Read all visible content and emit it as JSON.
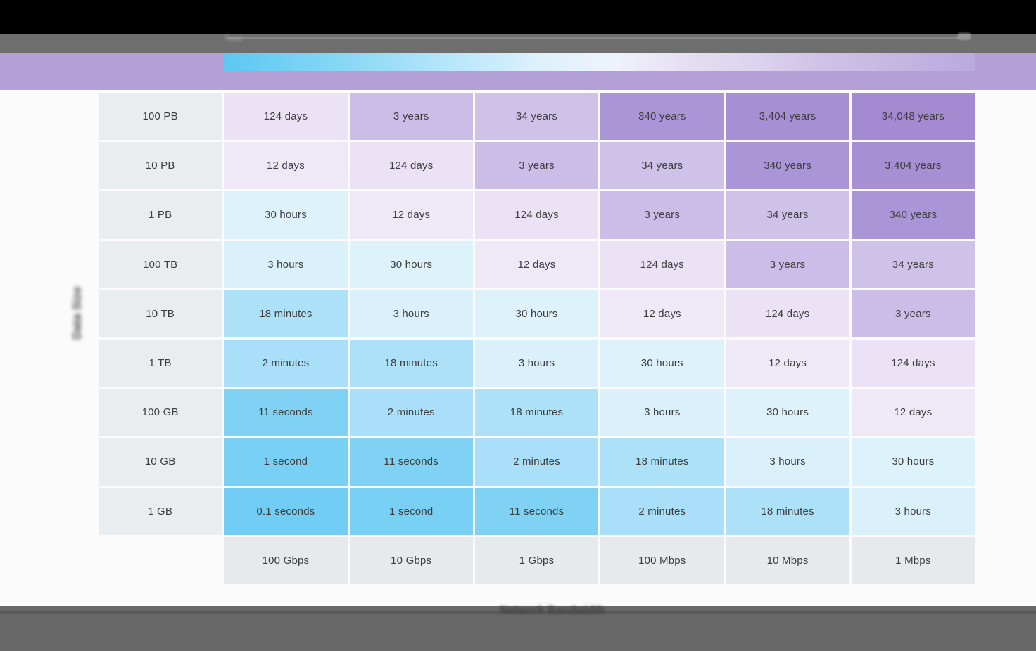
{
  "window": {
    "titlebar_color": "#000000",
    "toolbar_color": "#6e6e6e",
    "toolbar_blurred_label": "Time",
    "banner_color": "#b2a0d7",
    "gradient_left_color": "#5cc8f1",
    "gradient_mid_color": "#eef3fa",
    "gradient_right_color": "#baa9de",
    "footer_color": "#686868",
    "footer_track_color": "#5a5a5a"
  },
  "axes": {
    "y_label": "Data Size",
    "x_label": "Network Bandwidth"
  },
  "heatmap": {
    "label_bg": "#e9edf0",
    "header_bg": "#e7eaec",
    "text_color": "#3d3d3d",
    "row_labels": [
      "100 PB",
      "10 PB",
      "1 PB",
      "100 TB",
      "10 TB",
      "1 TB",
      "100 GB",
      "10 GB",
      "1 GB"
    ],
    "col_labels": [
      "100 Gbps",
      "10 Gbps",
      "1 Gbps",
      "100 Mbps",
      "10 Mbps",
      "1 Mbps"
    ],
    "values": [
      [
        "124 days",
        "3 years",
        "34 years",
        "340 years",
        "3,404 years",
        "34,048 years"
      ],
      [
        "12 days",
        "124 days",
        "3 years",
        "34 years",
        "340 years",
        "3,404 years"
      ],
      [
        "30 hours",
        "12 days",
        "124 days",
        "3 years",
        "34 years",
        "340 years"
      ],
      [
        "3 hours",
        "30 hours",
        "12 days",
        "124 days",
        "3 years",
        "34 years"
      ],
      [
        "18 minutes",
        "3 hours",
        "30 hours",
        "12 days",
        "124 days",
        "3 years"
      ],
      [
        "2 minutes",
        "18 minutes",
        "3 hours",
        "30 hours",
        "12 days",
        "124 days"
      ],
      [
        "11 seconds",
        "2 minutes",
        "18 minutes",
        "3 hours",
        "30 hours",
        "12 days"
      ],
      [
        "1 second",
        "11 seconds",
        "2 minutes",
        "18 minutes",
        "3 hours",
        "30 hours"
      ],
      [
        "0.1 seconds",
        "1 second",
        "11 seconds",
        "2 minutes",
        "18 minutes",
        "3 hours"
      ]
    ],
    "colormap": {
      "0.1 seconds": "#72cdf4",
      "1 second": "#79d0f5",
      "11 seconds": "#80d2f5",
      "2 minutes": "#a9dff8",
      "18 minutes": "#ace1f8",
      "3 hours": "#daf1fc",
      "30 hours": "#def2fc",
      "12 days": "#efe8f7",
      "124 days": "#ebe2f5",
      "3 years": "#cbbde7",
      "34 years": "#cfc2e9",
      "340 years": "#aa95d6",
      "3,404 years": "#a78fd3",
      "34,048 years": "#a48bd1"
    }
  },
  "chart_data": {
    "type": "heatmap",
    "title": "",
    "xlabel": "Network Bandwidth",
    "ylabel": "Data Size",
    "columns": [
      "100 Gbps",
      "10 Gbps",
      "1 Gbps",
      "100 Mbps",
      "10 Mbps",
      "1 Mbps"
    ],
    "rows": [
      "100 PB",
      "10 PB",
      "1 PB",
      "100 TB",
      "10 TB",
      "1 TB",
      "100 GB",
      "10 GB",
      "1 GB"
    ],
    "values": [
      [
        "124 days",
        "3 years",
        "34 years",
        "340 years",
        "3,404 years",
        "34,048 years"
      ],
      [
        "12 days",
        "124 days",
        "3 years",
        "34 years",
        "340 years",
        "3,404 years"
      ],
      [
        "30 hours",
        "12 days",
        "124 days",
        "3 years",
        "34 years",
        "340 years"
      ],
      [
        "3 hours",
        "30 hours",
        "12 days",
        "124 days",
        "3 years",
        "34 years"
      ],
      [
        "18 minutes",
        "3 hours",
        "30 hours",
        "12 days",
        "124 days",
        "3 years"
      ],
      [
        "2 minutes",
        "18 minutes",
        "3 hours",
        "30 hours",
        "12 days",
        "124 days"
      ],
      [
        "11 seconds",
        "2 minutes",
        "18 minutes",
        "3 hours",
        "30 hours",
        "12 days"
      ],
      [
        "1 second",
        "11 seconds",
        "2 minutes",
        "18 minutes",
        "3 hours",
        "30 hours"
      ],
      [
        "0.1 seconds",
        "1 second",
        "11 seconds",
        "2 minutes",
        "18 minutes",
        "3 hours"
      ]
    ],
    "legend_position": "none",
    "grid": false,
    "color_scale": "blue (fast transfer) to purple (slow transfer)"
  }
}
